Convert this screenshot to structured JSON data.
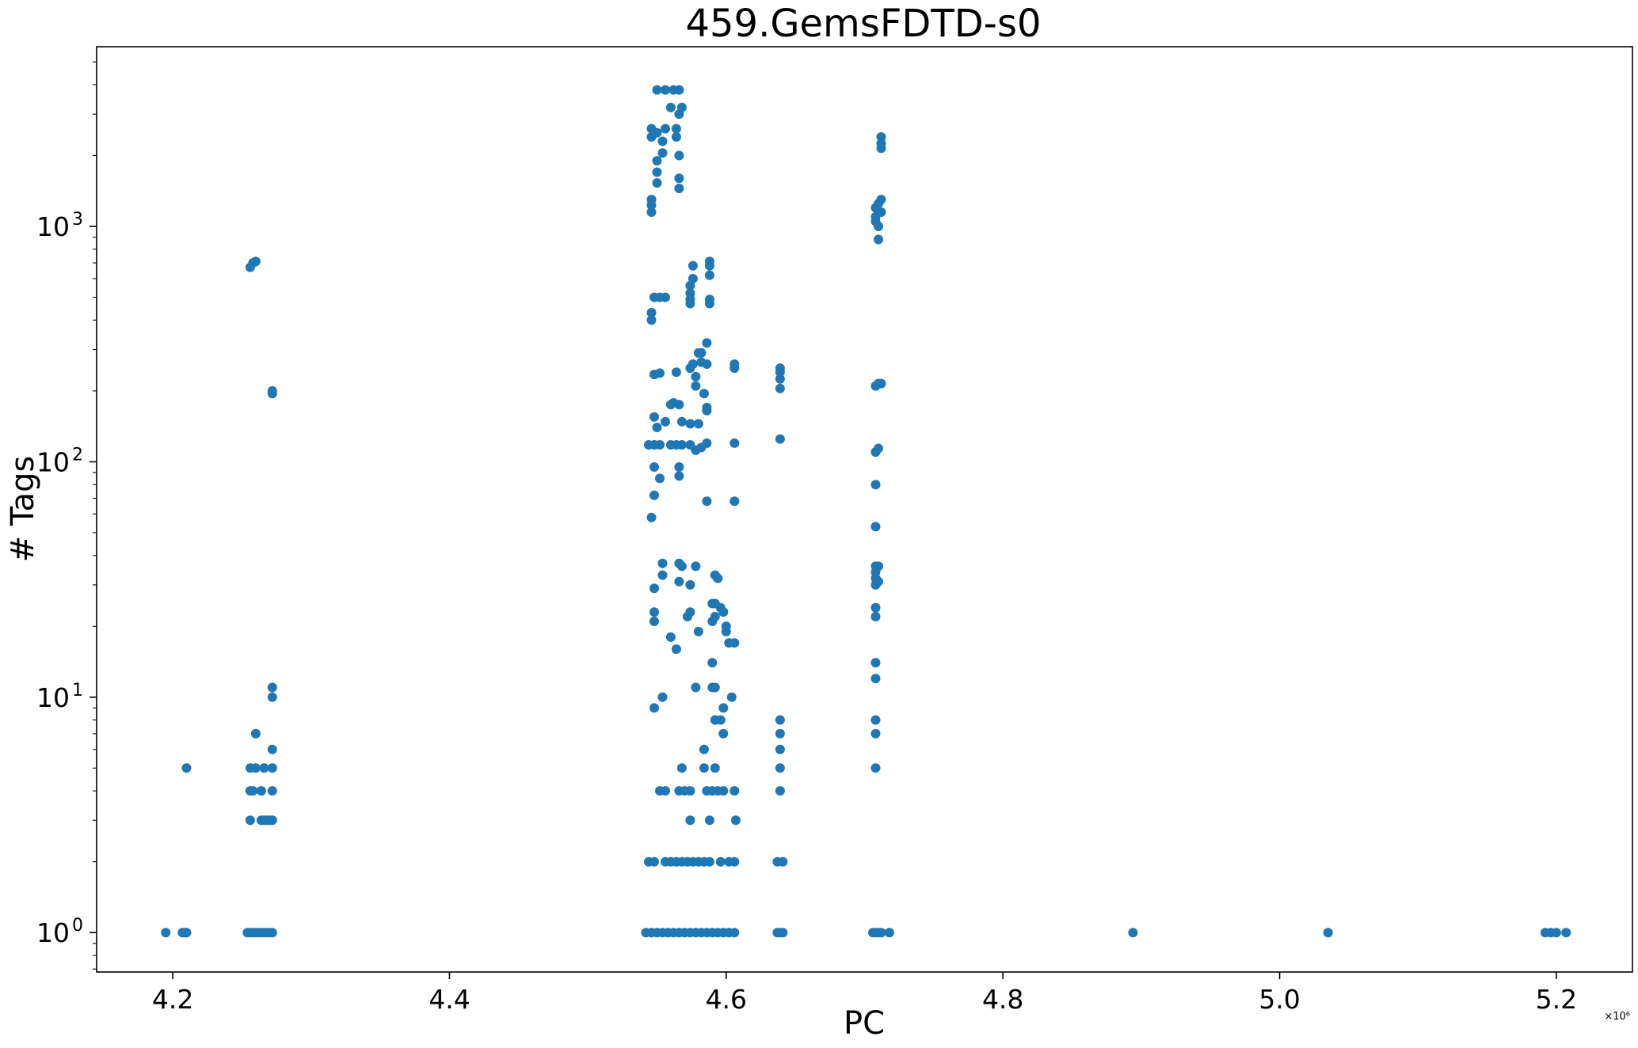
{
  "chart_data": {
    "type": "scatter",
    "title": "459.GemsFDTD-s0",
    "xlabel": "PC",
    "ylabel": "# Tags",
    "x_offset_label": "×10⁶",
    "x_scale": 1000000,
    "yscale": "log",
    "xlim": [
      4.145,
      5.255
    ],
    "ylim": [
      0.68,
      5800
    ],
    "x_ticks": [
      {
        "value": 4.2,
        "label": "4.2"
      },
      {
        "value": 4.4,
        "label": "4.4"
      },
      {
        "value": 4.6,
        "label": "4.6"
      },
      {
        "value": 4.8,
        "label": "4.8"
      },
      {
        "value": 5.0,
        "label": "5.0"
      },
      {
        "value": 5.2,
        "label": "5.2"
      }
    ],
    "y_ticks": [
      {
        "value": 1,
        "base": "10",
        "exp": "0"
      },
      {
        "value": 10,
        "base": "10",
        "exp": "1"
      },
      {
        "value": 100,
        "base": "10",
        "exp": "2"
      },
      {
        "value": 1000,
        "base": "10",
        "exp": "3"
      }
    ],
    "grid": false,
    "legend": null,
    "marker_color": "#1f77b4",
    "points": [
      [
        4.195,
        1
      ],
      [
        4.207,
        1
      ],
      [
        4.209,
        1
      ],
      [
        4.21,
        1
      ],
      [
        4.21,
        5
      ],
      [
        4.254,
        1
      ],
      [
        4.256,
        1
      ],
      [
        4.258,
        1
      ],
      [
        4.26,
        1
      ],
      [
        4.262,
        1
      ],
      [
        4.264,
        1
      ],
      [
        4.266,
        1
      ],
      [
        4.268,
        1
      ],
      [
        4.27,
        1
      ],
      [
        4.272,
        1
      ],
      [
        4.256,
        3
      ],
      [
        4.264,
        3
      ],
      [
        4.266,
        3
      ],
      [
        4.268,
        3
      ],
      [
        4.27,
        3
      ],
      [
        4.272,
        3
      ],
      [
        4.256,
        4
      ],
      [
        4.258,
        4
      ],
      [
        4.264,
        4
      ],
      [
        4.272,
        4
      ],
      [
        4.256,
        5
      ],
      [
        4.26,
        5
      ],
      [
        4.266,
        5
      ],
      [
        4.272,
        5
      ],
      [
        4.26,
        7
      ],
      [
        4.272,
        6
      ],
      [
        4.272,
        10
      ],
      [
        4.272,
        11
      ],
      [
        4.256,
        670
      ],
      [
        4.258,
        700
      ],
      [
        4.26,
        710
      ],
      [
        4.272,
        195
      ],
      [
        4.272,
        200
      ],
      [
        4.542,
        1
      ],
      [
        4.546,
        1
      ],
      [
        4.55,
        1
      ],
      [
        4.554,
        1
      ],
      [
        4.558,
        1
      ],
      [
        4.562,
        1
      ],
      [
        4.566,
        1
      ],
      [
        4.57,
        1
      ],
      [
        4.574,
        1
      ],
      [
        4.578,
        1
      ],
      [
        4.582,
        1
      ],
      [
        4.586,
        1
      ],
      [
        4.59,
        1
      ],
      [
        4.594,
        1
      ],
      [
        4.598,
        1
      ],
      [
        4.602,
        1
      ],
      [
        4.606,
        1
      ],
      [
        4.544,
        2
      ],
      [
        4.548,
        2
      ],
      [
        4.556,
        2
      ],
      [
        4.56,
        2
      ],
      [
        4.564,
        2
      ],
      [
        4.568,
        2
      ],
      [
        4.572,
        2
      ],
      [
        4.576,
        2
      ],
      [
        4.58,
        2
      ],
      [
        4.584,
        2
      ],
      [
        4.588,
        2
      ],
      [
        4.596,
        2
      ],
      [
        4.602,
        2
      ],
      [
        4.606,
        2
      ],
      [
        4.574,
        3
      ],
      [
        4.588,
        3
      ],
      [
        4.607,
        3
      ],
      [
        4.552,
        4
      ],
      [
        4.556,
        4
      ],
      [
        4.566,
        4
      ],
      [
        4.57,
        4
      ],
      [
        4.574,
        4
      ],
      [
        4.586,
        4
      ],
      [
        4.59,
        4
      ],
      [
        4.594,
        4
      ],
      [
        4.598,
        4
      ],
      [
        4.606,
        4
      ],
      [
        4.568,
        5
      ],
      [
        4.584,
        5
      ],
      [
        4.592,
        5
      ],
      [
        4.584,
        6
      ],
      [
        4.598,
        7
      ],
      [
        4.596,
        8
      ],
      [
        4.592,
        8
      ],
      [
        4.548,
        9
      ],
      [
        4.554,
        10
      ],
      [
        4.578,
        11
      ],
      [
        4.59,
        11
      ],
      [
        4.592,
        11
      ],
      [
        4.604,
        10
      ],
      [
        4.598,
        9
      ],
      [
        4.59,
        14
      ],
      [
        4.564,
        16
      ],
      [
        4.56,
        18
      ],
      [
        4.58,
        19
      ],
      [
        4.548,
        21
      ],
      [
        4.548,
        23
      ],
      [
        4.572,
        22
      ],
      [
        4.574,
        23
      ],
      [
        4.59,
        21
      ],
      [
        4.592,
        22
      ],
      [
        4.596,
        24
      ],
      [
        4.598,
        23
      ],
      [
        4.6,
        20
      ],
      [
        4.6,
        19
      ],
      [
        4.602,
        17
      ],
      [
        4.606,
        17
      ],
      [
        4.548,
        29
      ],
      [
        4.554,
        33
      ],
      [
        4.554,
        37
      ],
      [
        4.566,
        37
      ],
      [
        4.568,
        36
      ],
      [
        4.566,
        31
      ],
      [
        4.574,
        30
      ],
      [
        4.578,
        36
      ],
      [
        4.592,
        33
      ],
      [
        4.594,
        32
      ],
      [
        4.59,
        25
      ],
      [
        4.592,
        25
      ],
      [
        4.546,
        58
      ],
      [
        4.548,
        72
      ],
      [
        4.552,
        85
      ],
      [
        4.548,
        95
      ],
      [
        4.566,
        87
      ],
      [
        4.566,
        95
      ],
      [
        4.586,
        68
      ],
      [
        4.606,
        68
      ],
      [
        4.544,
        118
      ],
      [
        4.548,
        118
      ],
      [
        4.552,
        118
      ],
      [
        4.56,
        118
      ],
      [
        4.564,
        118
      ],
      [
        4.568,
        118
      ],
      [
        4.574,
        118
      ],
      [
        4.578,
        112
      ],
      [
        4.582,
        115
      ],
      [
        4.586,
        120
      ],
      [
        4.606,
        120
      ],
      [
        4.548,
        155
      ],
      [
        4.556,
        148
      ],
      [
        4.55,
        140
      ],
      [
        4.568,
        148
      ],
      [
        4.574,
        145
      ],
      [
        4.58,
        145
      ],
      [
        4.586,
        165
      ],
      [
        4.586,
        170
      ],
      [
        4.56,
        175
      ],
      [
        4.562,
        178
      ],
      [
        4.566,
        175
      ],
      [
        4.548,
        235
      ],
      [
        4.552,
        238
      ],
      [
        4.564,
        240
      ],
      [
        4.574,
        250
      ],
      [
        4.576,
        260
      ],
      [
        4.582,
        265
      ],
      [
        4.586,
        260
      ],
      [
        4.578,
        230
      ],
      [
        4.578,
        210
      ],
      [
        4.584,
        195
      ],
      [
        4.58,
        290
      ],
      [
        4.582,
        290
      ],
      [
        4.586,
        320
      ],
      [
        4.606,
        250
      ],
      [
        4.606,
        260
      ],
      [
        4.546,
        400
      ],
      [
        4.546,
        430
      ],
      [
        4.548,
        500
      ],
      [
        4.552,
        500
      ],
      [
        4.556,
        500
      ],
      [
        4.574,
        470
      ],
      [
        4.574,
        490
      ],
      [
        4.574,
        520
      ],
      [
        4.574,
        560
      ],
      [
        4.576,
        600
      ],
      [
        4.576,
        680
      ],
      [
        4.588,
        470
      ],
      [
        4.588,
        490
      ],
      [
        4.588,
        620
      ],
      [
        4.588,
        680
      ],
      [
        4.588,
        710
      ],
      [
        4.546,
        1150
      ],
      [
        4.546,
        1230
      ],
      [
        4.546,
        1300
      ],
      [
        4.546,
        2400
      ],
      [
        4.546,
        2600
      ],
      [
        4.55,
        1530
      ],
      [
        4.55,
        1700
      ],
      [
        4.55,
        1900
      ],
      [
        4.554,
        2050
      ],
      [
        4.554,
        2300
      ],
      [
        4.55,
        2500
      ],
      [
        4.556,
        2600
      ],
      [
        4.556,
        3800
      ],
      [
        4.55,
        3800
      ],
      [
        4.56,
        3200
      ],
      [
        4.566,
        1450
      ],
      [
        4.566,
        1600
      ],
      [
        4.566,
        2000
      ],
      [
        4.564,
        2400
      ],
      [
        4.564,
        2600
      ],
      [
        4.566,
        3800
      ],
      [
        4.568,
        3200
      ],
      [
        4.566,
        3000
      ],
      [
        4.562,
        3800
      ],
      [
        4.637,
        1
      ],
      [
        4.639,
        1
      ],
      [
        4.641,
        1
      ],
      [
        4.637,
        2
      ],
      [
        4.641,
        2
      ],
      [
        4.639,
        4
      ],
      [
        4.639,
        5
      ],
      [
        4.639,
        6
      ],
      [
        4.639,
        7
      ],
      [
        4.639,
        8
      ],
      [
        4.639,
        125
      ],
      [
        4.639,
        205
      ],
      [
        4.639,
        225
      ],
      [
        4.639,
        240
      ],
      [
        4.639,
        250
      ],
      [
        4.706,
        1
      ],
      [
        4.708,
        1
      ],
      [
        4.71,
        1
      ],
      [
        4.712,
        1
      ],
      [
        4.718,
        1
      ],
      [
        4.708,
        5
      ],
      [
        4.708,
        7
      ],
      [
        4.708,
        8
      ],
      [
        4.708,
        12
      ],
      [
        4.708,
        14
      ],
      [
        4.708,
        22
      ],
      [
        4.708,
        24
      ],
      [
        4.708,
        30
      ],
      [
        4.708,
        32
      ],
      [
        4.708,
        34
      ],
      [
        4.708,
        36
      ],
      [
        4.71,
        31
      ],
      [
        4.71,
        36
      ],
      [
        4.708,
        53
      ],
      [
        4.708,
        80
      ],
      [
        4.708,
        110
      ],
      [
        4.71,
        114
      ],
      [
        4.708,
        210
      ],
      [
        4.71,
        215
      ],
      [
        4.712,
        215
      ],
      [
        4.708,
        1050
      ],
      [
        4.708,
        1100
      ],
      [
        4.708,
        1200
      ],
      [
        4.71,
        880
      ],
      [
        4.71,
        1000
      ],
      [
        4.712,
        1150
      ],
      [
        4.71,
        1250
      ],
      [
        4.712,
        1300
      ],
      [
        4.712,
        2150
      ],
      [
        4.712,
        2250
      ],
      [
        4.712,
        2400
      ],
      [
        4.894,
        1
      ],
      [
        5.035,
        1
      ],
      [
        5.192,
        1
      ],
      [
        5.196,
        1
      ],
      [
        5.2,
        1
      ],
      [
        5.207,
        1
      ]
    ]
  }
}
